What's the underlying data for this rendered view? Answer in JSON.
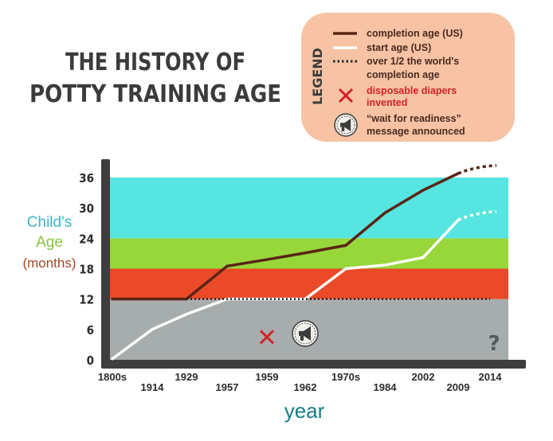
{
  "chart_data": {
    "type": "line",
    "title_lines": [
      "THE HISTORY OF",
      "POTTY TRAINING AGE"
    ],
    "ylabel_lines": [
      "Child's",
      "Age",
      "(months)"
    ],
    "xlabel": "year",
    "ylim": [
      0,
      38
    ],
    "yticks": [
      "0",
      "6",
      "12",
      "18",
      "24",
      "30",
      "36"
    ],
    "yband_colors": [
      {
        "from": 0,
        "to": 12,
        "color": "#a7adac"
      },
      {
        "from": 12,
        "to": 18,
        "color": "#ea4a28"
      },
      {
        "from": 18,
        "to": 24,
        "color": "#97d73a"
      },
      {
        "from": 24,
        "to": 36,
        "color": "#56e5e0"
      }
    ],
    "categories": [
      "1800s",
      "1914",
      "1929",
      "1957",
      "1959",
      "1962",
      "1970s",
      "1984",
      "2002",
      "2009",
      "2014"
    ],
    "series": [
      {
        "name": "completion age (US)",
        "color": "#5a2415",
        "style": "solid",
        "values": [
          12,
          12,
          12,
          18.5,
          19.8,
          21.1,
          22.6,
          29,
          33.5,
          36.8,
          null
        ],
        "projected": [
          [
            9,
            36.8
          ],
          [
            10,
            38.3
          ]
        ]
      },
      {
        "name": "start age (US)",
        "color": "#ffffff",
        "style": "solid",
        "values": [
          0.2,
          6,
          9,
          12,
          12,
          12,
          18,
          18.7,
          20.2,
          27.6,
          null
        ],
        "projected": [
          [
            9,
            27.6
          ],
          [
            10,
            29.2
          ]
        ]
      },
      {
        "name": "over 1/2 the world's completion age",
        "color": "#222222",
        "style": "dotted",
        "values": [
          null,
          null,
          12,
          12,
          12,
          12,
          12,
          12,
          12,
          12,
          12
        ]
      }
    ],
    "markers": [
      {
        "type": "x",
        "label": "disposable diapers invented",
        "at_category": "1959",
        "y": 4.5,
        "color": "#d32027"
      },
      {
        "type": "megaphone",
        "label": "“wait for readiness” message announced",
        "at_category": "1962",
        "y": 5.2
      }
    ],
    "annotation": "?",
    "legend": {
      "title": "LEGEND",
      "placement": "top-right",
      "items": [
        {
          "label_lines": [
            "completion age (US)"
          ],
          "kind": "line",
          "color": "#5a2415"
        },
        {
          "label_lines": [
            "start age (US)"
          ],
          "kind": "line",
          "color": "#ffffff"
        },
        {
          "label_lines": [
            "over 1/2 the world's",
            "completion age"
          ],
          "kind": "dotted",
          "color": "#222222"
        },
        {
          "label_lines": [
            "disposable diapers",
            "invented"
          ],
          "kind": "x",
          "color": "#d32027"
        },
        {
          "label_lines": [
            "“wait for readiness”",
            "message announced"
          ],
          "kind": "megaphone",
          "color": "#3b3b3b"
        }
      ]
    }
  }
}
